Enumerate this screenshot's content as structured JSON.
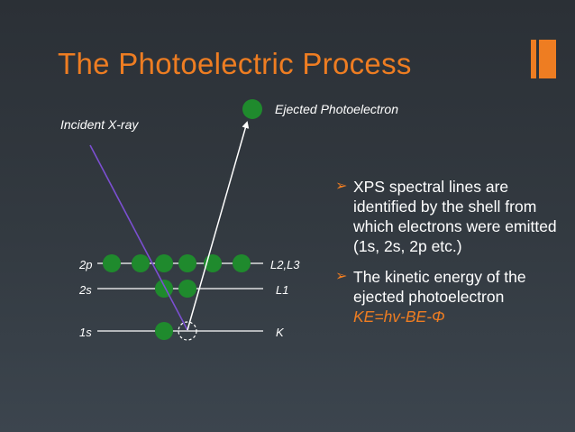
{
  "title": "The Photoelectric Process",
  "colors": {
    "accent": "#ee7d22",
    "electron": "#1f8a2d",
    "xray": "#7b4fd1",
    "text": "#ffffff",
    "background": "#30363c"
  },
  "diagram": {
    "incident_label": "Incident X-ray",
    "ejected_label": "Ejected Photoelectron",
    "levels": [
      {
        "left_label": "2p",
        "right_label": "L2,L3",
        "electrons": 6
      },
      {
        "left_label": "2s",
        "right_label": "L1",
        "electrons": 2
      },
      {
        "left_label": "1s",
        "right_label": "K",
        "electrons": 1,
        "vacancy": 1
      }
    ]
  },
  "bullets": [
    {
      "marker": "➢",
      "text": "XPS spectral lines are identified by the shell from which electrons were emitted (1s, 2s, 2p etc.)"
    },
    {
      "marker": "➢",
      "text": "The kinetic energy of the ejected photoelectron",
      "formula": "KE=hv-BE-Φ"
    }
  ]
}
